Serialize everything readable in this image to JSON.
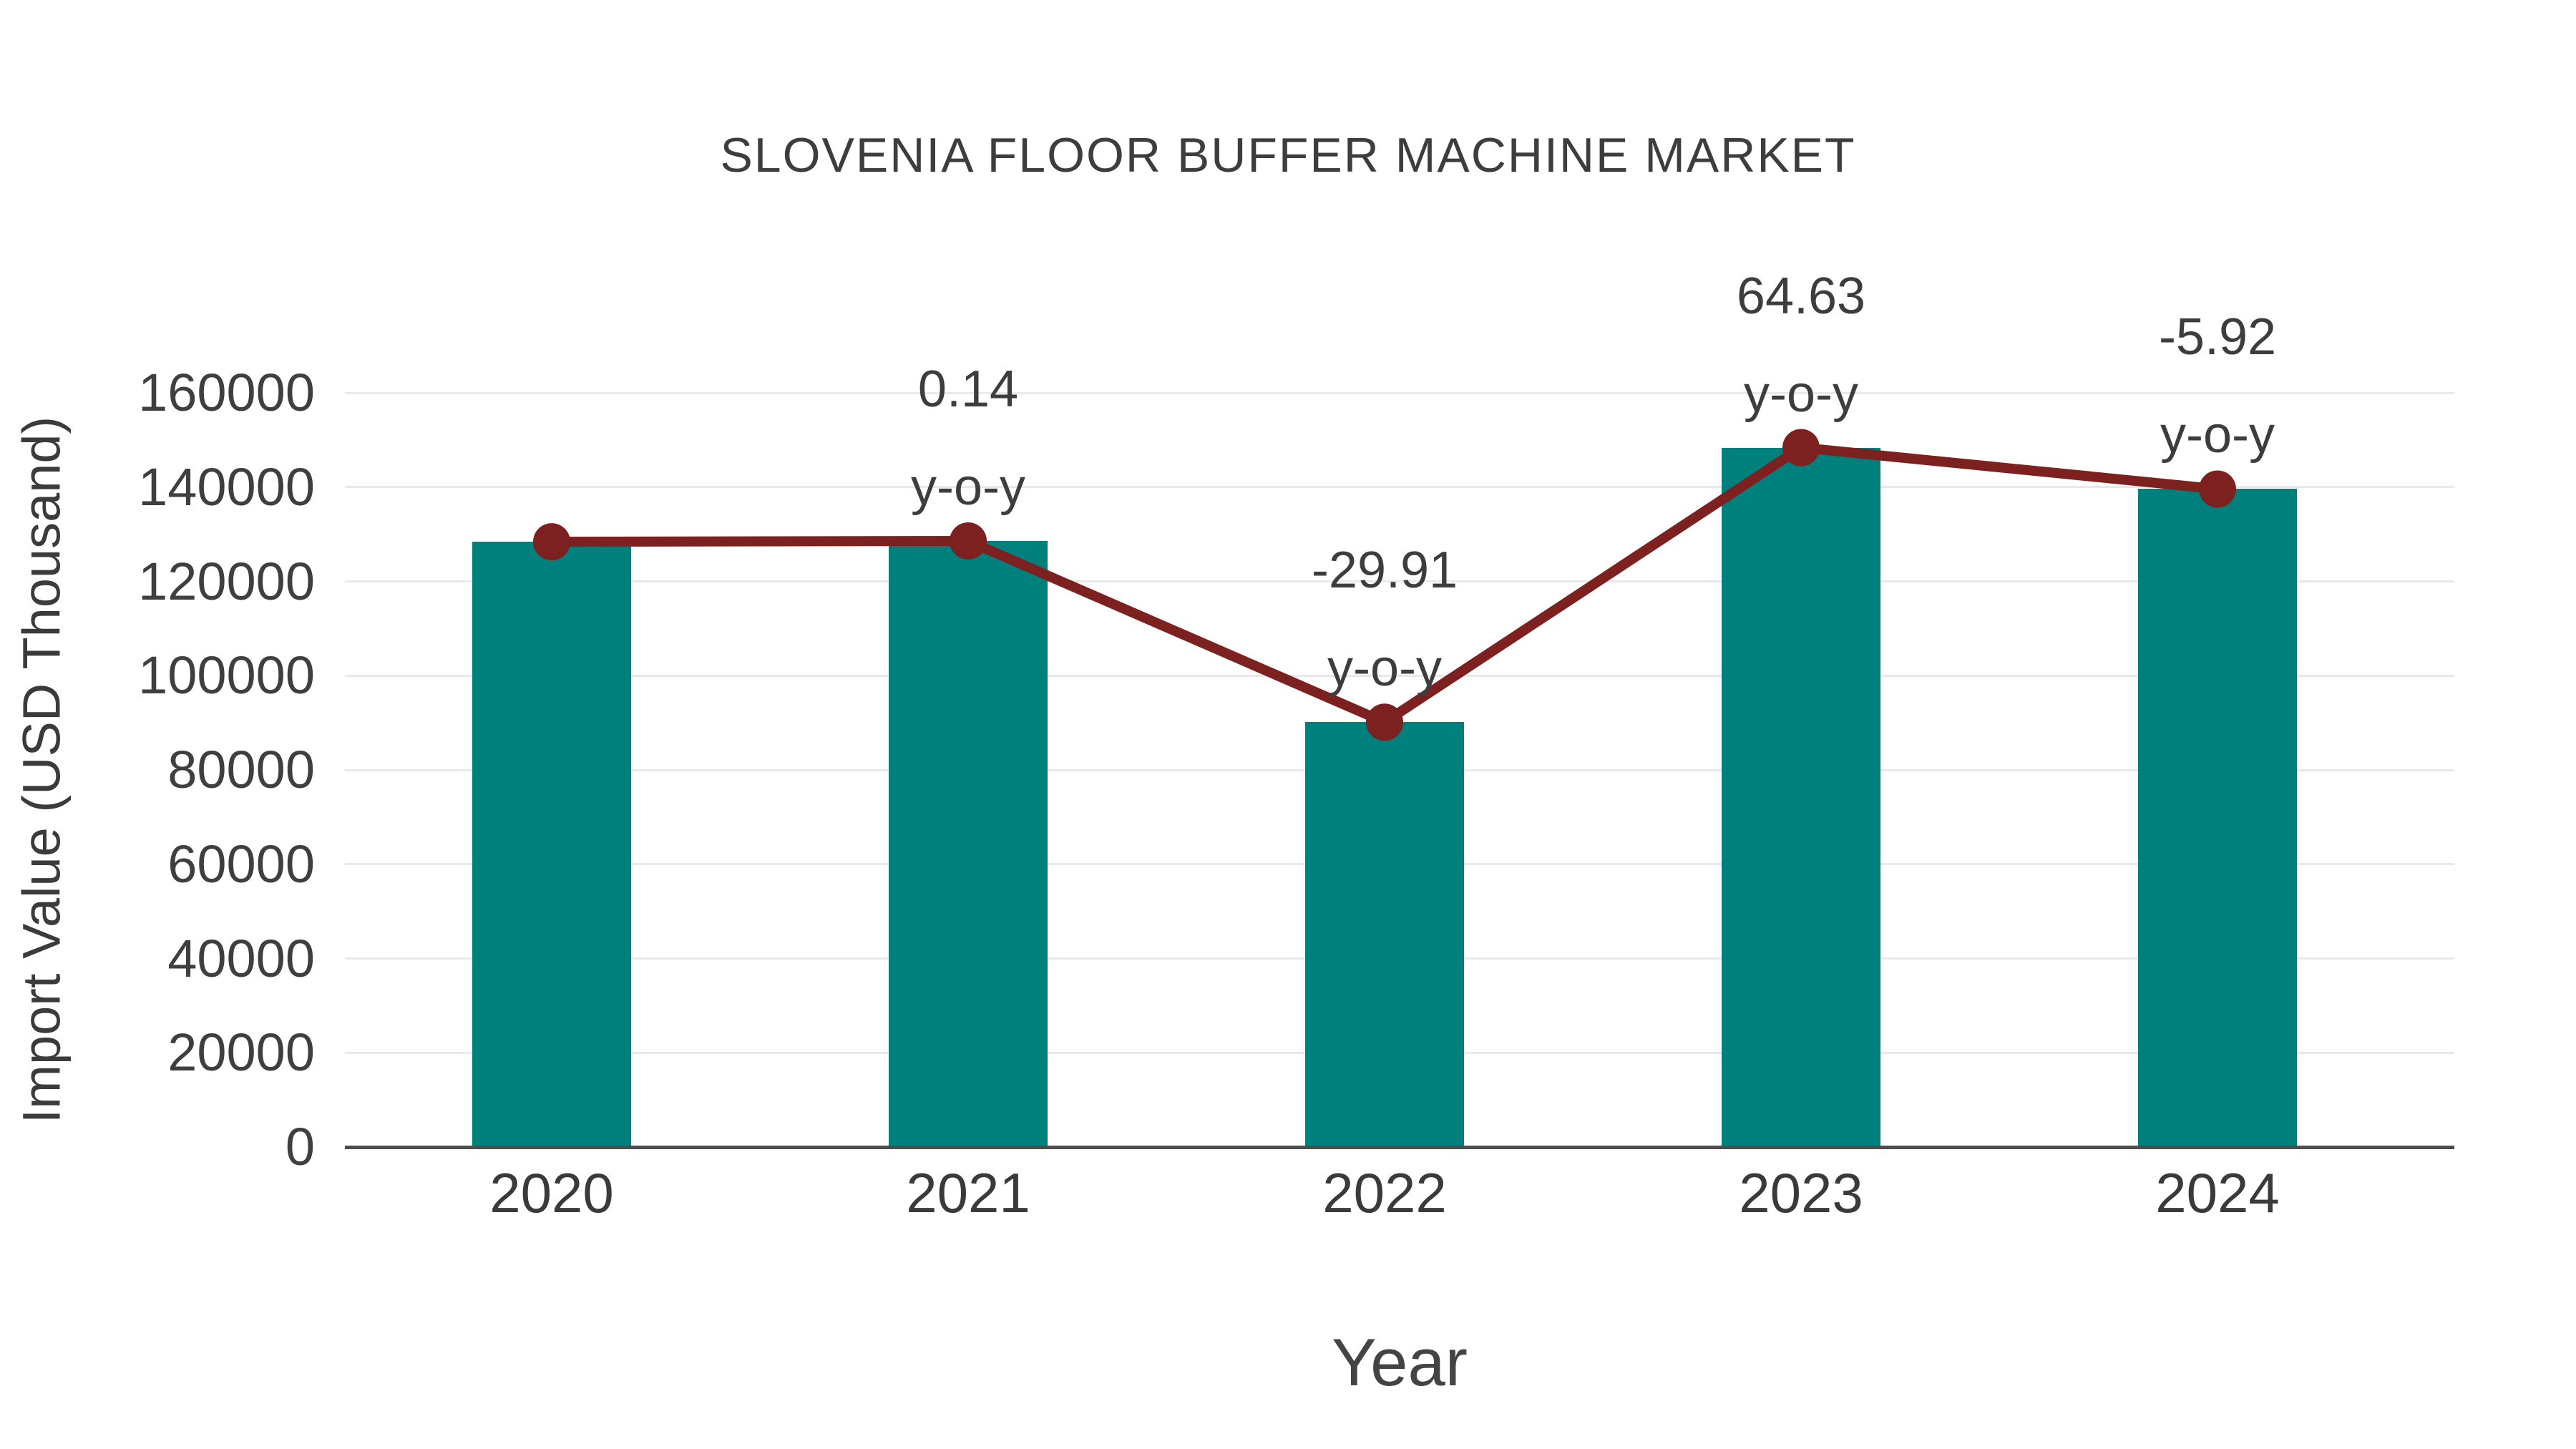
{
  "title": "SLOVENIA FLOOR BUFFER MACHINE MARKET",
  "chart_data": {
    "type": "combo_bar_line",
    "title": "SLOVENIA FLOOR BUFFER MACHINE MARKET",
    "xlabel": "Year",
    "ylabel": "Import Value (USD Thousand)",
    "categories": [
      "2020",
      "2021",
      "2022",
      "2023",
      "2024"
    ],
    "series": [
      {
        "name": "Import Value (USD Thousand)",
        "type": "bar",
        "color": "#00807D",
        "values": [
          128400,
          128580,
          90130,
          148380,
          139590
        ]
      },
      {
        "name": "y-o-y growth",
        "type": "line",
        "color": "#7D2020",
        "marker": "circle",
        "values": [
          128400,
          128580,
          90130,
          148380,
          139590
        ],
        "yoy_percent": [
          null,
          0.14,
          -29.91,
          64.63,
          -5.92
        ]
      }
    ],
    "annotations": [
      {
        "category": "2021",
        "line1": "0.14",
        "line2": "y-o-y"
      },
      {
        "category": "2022",
        "line1": "-29.91",
        "line2": "y-o-y"
      },
      {
        "category": "2023",
        "line1": "64.63",
        "line2": "y-o-y"
      },
      {
        "category": "2024",
        "line1": "-5.92",
        "line2": "y-o-y"
      }
    ],
    "ylim": [
      0,
      160000
    ],
    "yticks": [
      0,
      20000,
      40000,
      60000,
      80000,
      100000,
      120000,
      140000,
      160000
    ],
    "ytick_labels": [
      "0",
      "20000",
      "40000",
      "60000",
      "80000",
      "100000",
      "120000",
      "140000",
      "160000"
    ],
    "grid": true,
    "legend": false,
    "colors": {
      "bar": "#00807D",
      "line": "#7D2020",
      "grid": "#e9e9e9",
      "axis": "#4d4d4d",
      "text": "#3d3d3d"
    }
  }
}
